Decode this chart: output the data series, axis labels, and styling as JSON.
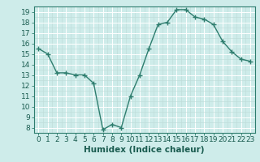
{
  "x": [
    0,
    1,
    2,
    3,
    4,
    5,
    6,
    7,
    8,
    9,
    10,
    11,
    12,
    13,
    14,
    15,
    16,
    17,
    18,
    19,
    20,
    21,
    22,
    23
  ],
  "y": [
    15.5,
    15.0,
    13.2,
    13.2,
    13.0,
    13.0,
    12.2,
    7.8,
    8.3,
    8.0,
    11.0,
    13.0,
    15.5,
    17.8,
    18.0,
    19.2,
    19.2,
    18.5,
    18.3,
    17.8,
    16.2,
    15.2,
    14.5,
    14.3
  ],
  "xlabel": "Humidex (Indice chaleur)",
  "xlim": [
    -0.5,
    23.5
  ],
  "ylim": [
    7.5,
    19.5
  ],
  "yticks": [
    8,
    9,
    10,
    11,
    12,
    13,
    14,
    15,
    16,
    17,
    18,
    19
  ],
  "xticks": [
    0,
    1,
    2,
    3,
    4,
    5,
    6,
    7,
    8,
    9,
    10,
    11,
    12,
    13,
    14,
    15,
    16,
    17,
    18,
    19,
    20,
    21,
    22,
    23
  ],
  "line_color": "#2e7d6e",
  "marker_color": "#2e7d6e",
  "bg_color": "#ceecea",
  "grid_major_color": "#ffffff",
  "grid_minor_color": "#bddbd8",
  "spine_color": "#2e7d6e",
  "text_color": "#1a5c50",
  "xlabel_fontsize": 7.5,
  "tick_fontsize": 6.5,
  "fig_width": 3.2,
  "fig_height": 2.0,
  "dpi": 100
}
